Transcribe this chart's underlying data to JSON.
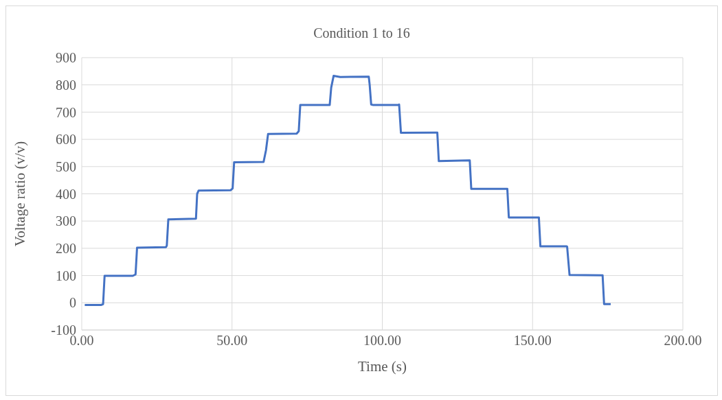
{
  "chart_data": {
    "type": "line",
    "title": "Condition 1 to 16",
    "xlabel": "Time (s)",
    "ylabel": "Voltage ratio (v/v)",
    "xlim": [
      0,
      200
    ],
    "xticks": [
      {
        "value": 0,
        "label": "0.00"
      },
      {
        "value": 50,
        "label": "50.00"
      },
      {
        "value": 100,
        "label": "100.00"
      },
      {
        "value": 150,
        "label": "150.00"
      },
      {
        "value": 200,
        "label": "200.00"
      }
    ],
    "ylim": [
      -100,
      900
    ],
    "yticks": [
      -100,
      0,
      100,
      200,
      300,
      400,
      500,
      600,
      700,
      800,
      900
    ],
    "grid": true,
    "marker": "none",
    "line_style": "solid",
    "series": [
      {
        "color": "#4472c4",
        "x": [
          1,
          6.5,
          7.1,
          7.6,
          17,
          17.9,
          18.4,
          28,
          28.3,
          28.8,
          38,
          38.4,
          38.9,
          49.5,
          50.2,
          50.7,
          60.5,
          61.3,
          62,
          71.5,
          72.2,
          72.7,
          82.5,
          83,
          83.8,
          86,
          95.5,
          95.8,
          96.3,
          97,
          105.5,
          105.6,
          106.2,
          117.8,
          118.3,
          118.8,
          128.9,
          129.1,
          129.6,
          141.3,
          141.6,
          142.1,
          151.9,
          152.1,
          152.6,
          161.4,
          161.5,
          162.3,
          173,
          173.3,
          173.8,
          176
        ],
        "values": [
          -8,
          -8,
          -5,
          99,
          99,
          104,
          202,
          204,
          210,
          306,
          309,
          400,
          412,
          413,
          420,
          516,
          517,
          560,
          620,
          621,
          630,
          726,
          726,
          790,
          833,
          829,
          830,
          800,
          728,
          726,
          726,
          728,
          624,
          625,
          625,
          520,
          523,
          523,
          418,
          418,
          418,
          313,
          313,
          313,
          207,
          207,
          206,
          102,
          101,
          101,
          -5,
          -5
        ]
      }
    ]
  }
}
